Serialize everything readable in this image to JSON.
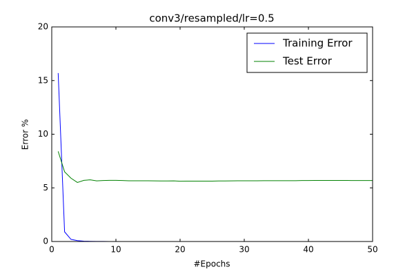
{
  "chart_data": {
    "type": "line",
    "title": "conv3/resampled/lr=0.5",
    "x_label": "#Epochs",
    "y_label": "Error %",
    "x": [
      1,
      2,
      3,
      4,
      5,
      6,
      7,
      8,
      9,
      10,
      11,
      12,
      13,
      14,
      15,
      16,
      17,
      18,
      19,
      20,
      21,
      22,
      23,
      24,
      25,
      26,
      27,
      28,
      29,
      30,
      31,
      32,
      33,
      34,
      35,
      36,
      37,
      38,
      39,
      40,
      41,
      42,
      43,
      44,
      45,
      46,
      47,
      48,
      49,
      50
    ],
    "series": [
      {
        "name": "Training Error",
        "color": "#0000ff",
        "values": [
          15.7,
          0.9,
          0.2,
          0.08,
          0.03,
          0.02,
          0.01,
          0.01,
          0,
          0,
          0,
          0,
          0,
          0,
          0,
          0,
          0,
          0,
          0,
          0,
          0,
          0,
          0,
          0,
          0,
          0,
          0,
          0,
          0,
          0,
          0,
          0,
          0,
          0,
          0,
          0,
          0,
          0,
          0,
          0,
          0,
          0,
          0,
          0,
          0,
          0,
          0,
          0,
          0,
          0
        ]
      },
      {
        "name": "Test Error",
        "color": "#008000",
        "values": [
          8.4,
          6.5,
          5.9,
          5.5,
          5.7,
          5.75,
          5.65,
          5.68,
          5.7,
          5.7,
          5.68,
          5.66,
          5.66,
          5.66,
          5.66,
          5.65,
          5.64,
          5.64,
          5.65,
          5.62,
          5.63,
          5.63,
          5.63,
          5.63,
          5.63,
          5.64,
          5.64,
          5.65,
          5.66,
          5.66,
          5.66,
          5.66,
          5.67,
          5.67,
          5.67,
          5.67,
          5.67,
          5.67,
          5.68,
          5.68,
          5.69,
          5.69,
          5.69,
          5.69,
          5.69,
          5.69,
          5.68,
          5.68,
          5.68,
          5.68
        ]
      }
    ],
    "xlim": [
      0,
      50
    ],
    "xticks": [
      0,
      10,
      20,
      30,
      40,
      50
    ],
    "ylim": [
      0,
      20
    ],
    "yticks": [
      0,
      5,
      10,
      15,
      20
    ],
    "grid": false,
    "legend": "upper right"
  }
}
